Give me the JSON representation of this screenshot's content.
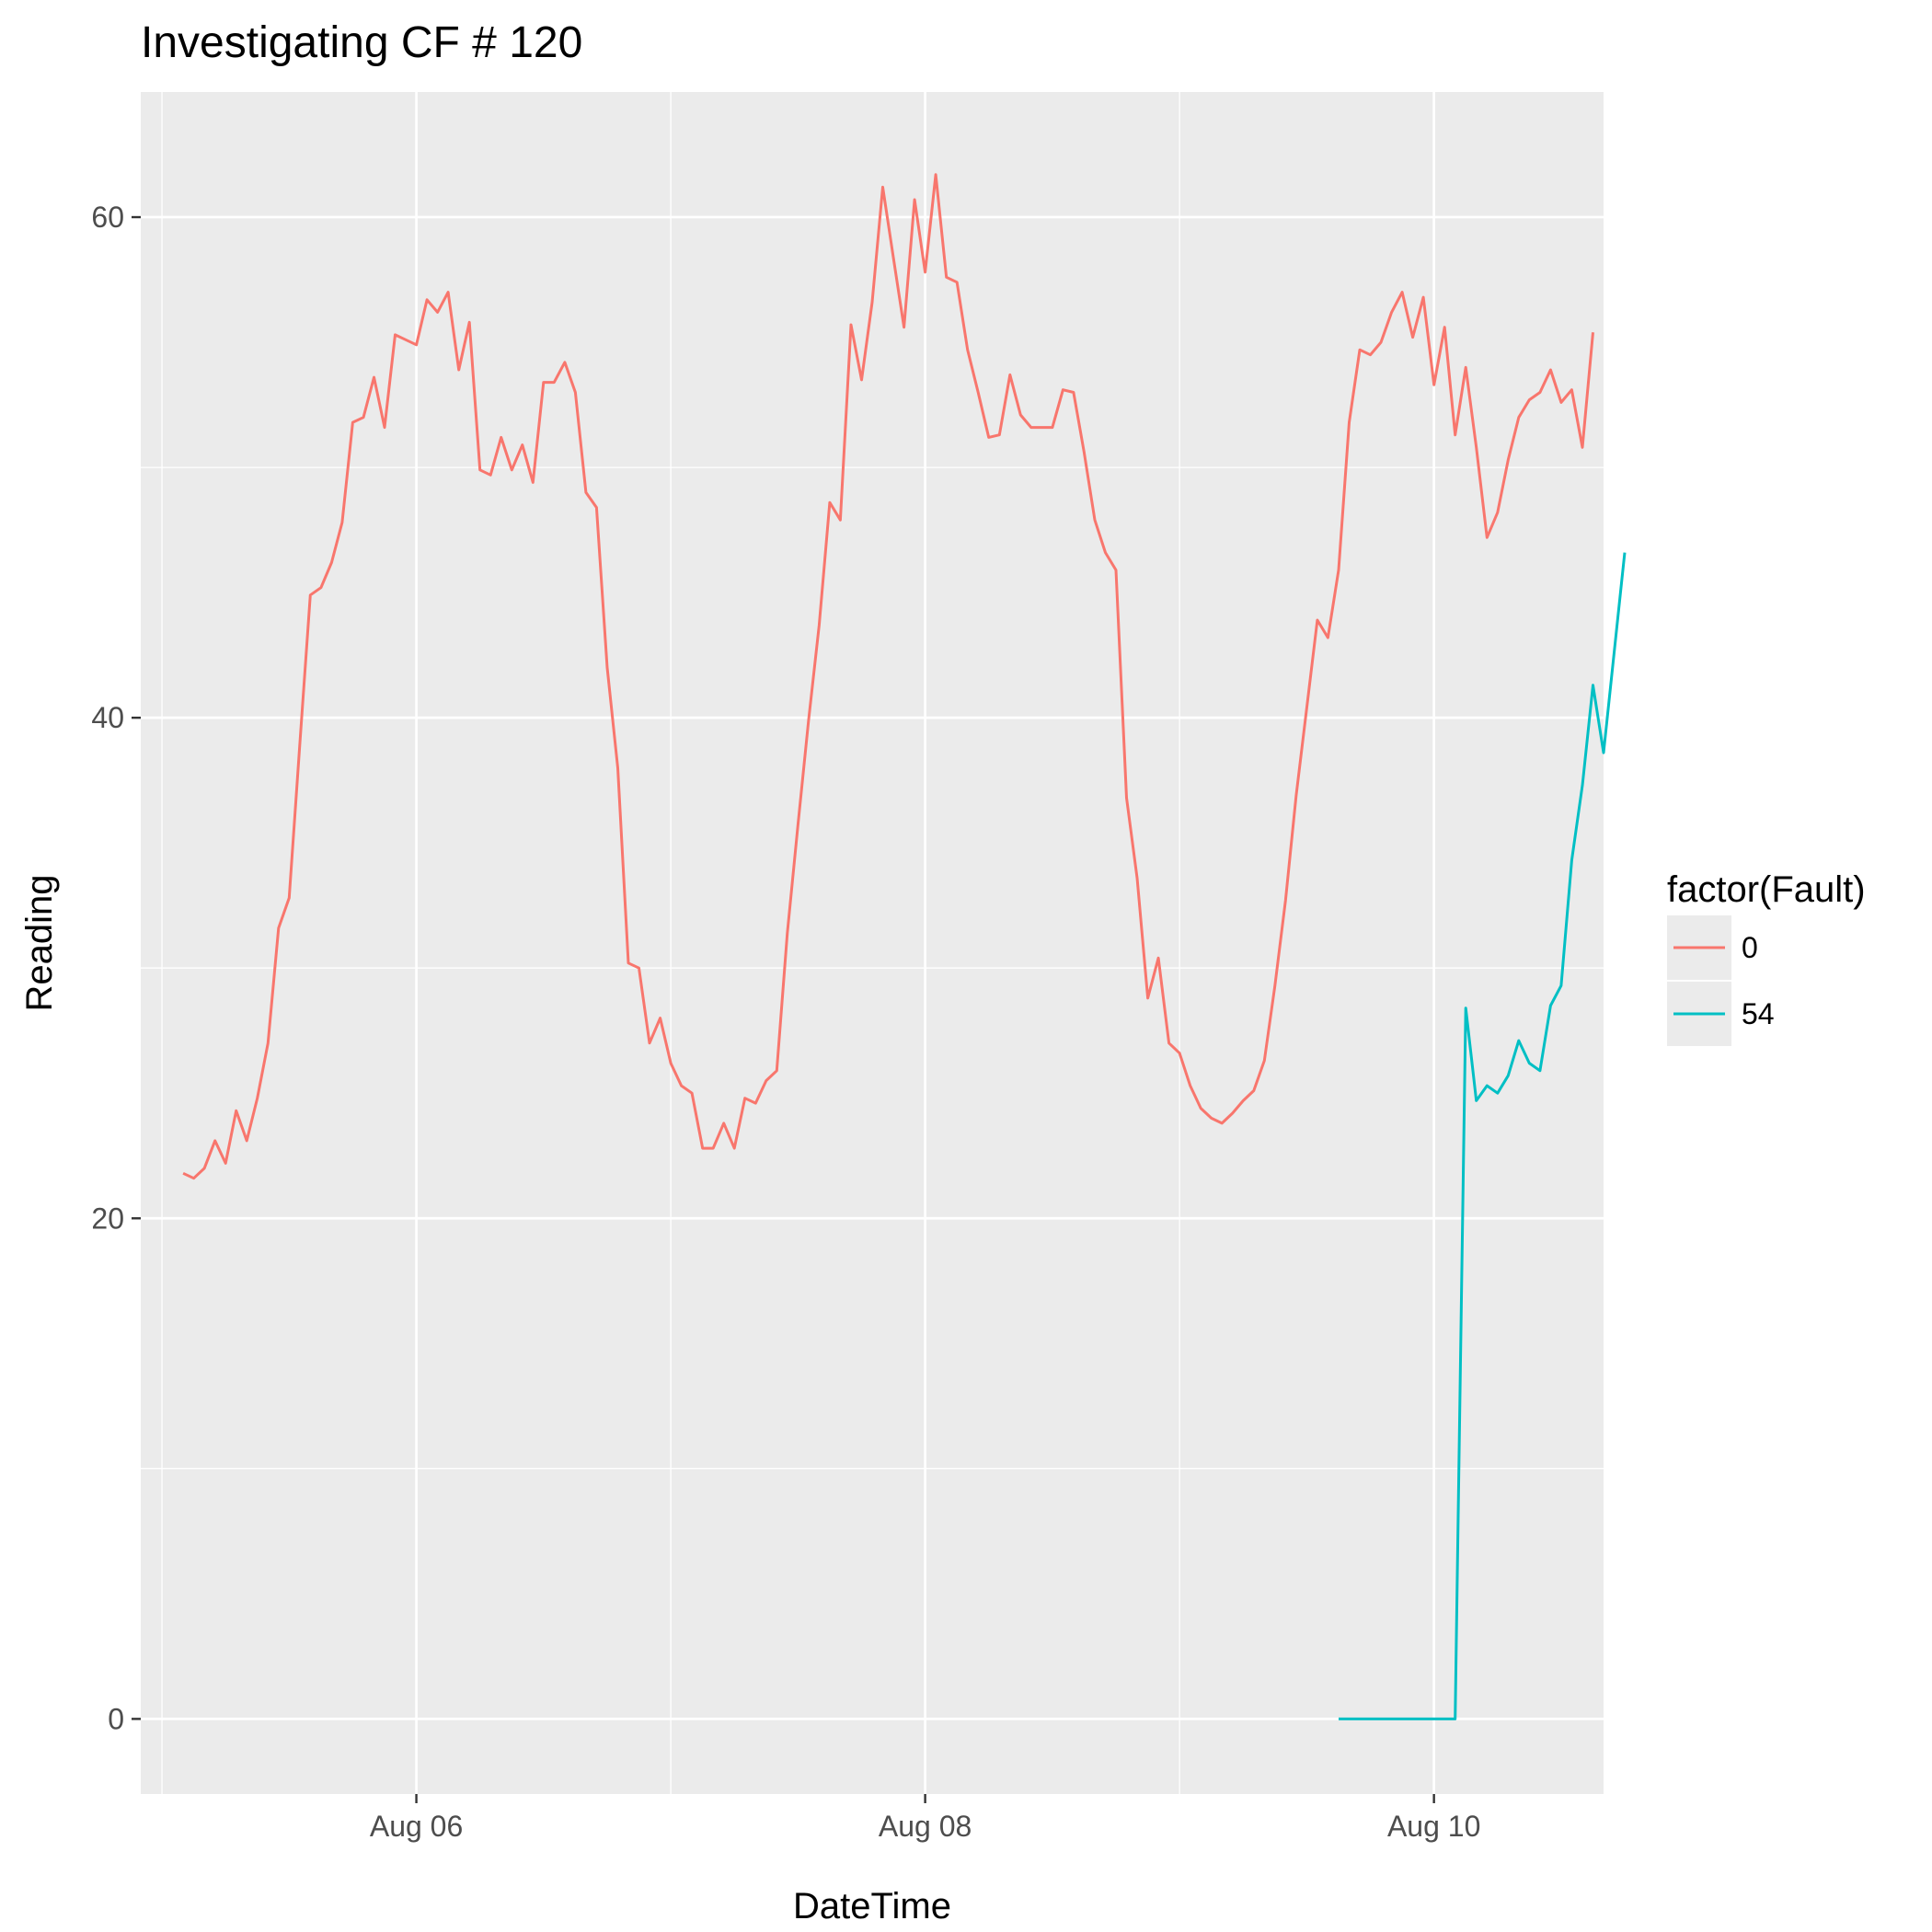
{
  "chart_data": {
    "type": "line",
    "title": "Investigating CF # 120",
    "xlabel": "DateTime",
    "ylabel": "Reading",
    "xlim": [
      "2023-08-04T22:00",
      "2023-08-10T16:00"
    ],
    "ylim": [
      -3,
      65
    ],
    "x_ticks": [
      {
        "label": "Aug 06",
        "value": "2023-08-06T00:00"
      },
      {
        "label": "Aug 08",
        "value": "2023-08-08T00:00"
      },
      {
        "label": "Aug 10",
        "value": "2023-08-10T00:00"
      }
    ],
    "y_ticks": [
      0,
      20,
      40,
      60
    ],
    "grid": true,
    "legend": {
      "title": "factor(Fault)",
      "position": "right"
    },
    "series": [
      {
        "name": "0",
        "color": "#F8766D",
        "points": [
          [
            "2023-08-05T02:00",
            21.8
          ],
          [
            "2023-08-05T03:00",
            21.6
          ],
          [
            "2023-08-05T04:00",
            22.0
          ],
          [
            "2023-08-05T05:00",
            23.1
          ],
          [
            "2023-08-05T06:00",
            22.2
          ],
          [
            "2023-08-05T07:00",
            24.3
          ],
          [
            "2023-08-05T08:00",
            23.1
          ],
          [
            "2023-08-05T09:00",
            24.8
          ],
          [
            "2023-08-05T10:00",
            27.0
          ],
          [
            "2023-08-05T11:00",
            31.6
          ],
          [
            "2023-08-05T12:00",
            32.8
          ],
          [
            "2023-08-05T13:00",
            38.9
          ],
          [
            "2023-08-05T14:00",
            44.9
          ],
          [
            "2023-08-05T15:00",
            45.2
          ],
          [
            "2023-08-05T16:00",
            46.2
          ],
          [
            "2023-08-05T17:00",
            47.8
          ],
          [
            "2023-08-05T18:00",
            51.8
          ],
          [
            "2023-08-05T19:00",
            52.0
          ],
          [
            "2023-08-05T20:00",
            53.6
          ],
          [
            "2023-08-05T21:00",
            51.6
          ],
          [
            "2023-08-05T22:00",
            55.3
          ],
          [
            "2023-08-05T23:00",
            55.1
          ],
          [
            "2023-08-06T00:00",
            54.9
          ],
          [
            "2023-08-06T01:00",
            56.7
          ],
          [
            "2023-08-06T02:00",
            56.2
          ],
          [
            "2023-08-06T03:00",
            57.0
          ],
          [
            "2023-08-06T04:00",
            53.9
          ],
          [
            "2023-08-06T05:00",
            55.8
          ],
          [
            "2023-08-06T06:00",
            49.9
          ],
          [
            "2023-08-06T07:00",
            49.7
          ],
          [
            "2023-08-06T08:00",
            51.2
          ],
          [
            "2023-08-06T09:00",
            49.9
          ],
          [
            "2023-08-06T10:00",
            50.9
          ],
          [
            "2023-08-06T11:00",
            49.4
          ],
          [
            "2023-08-06T12:00",
            53.4
          ],
          [
            "2023-08-06T13:00",
            53.4
          ],
          [
            "2023-08-06T14:00",
            54.2
          ],
          [
            "2023-08-06T15:00",
            53.0
          ],
          [
            "2023-08-06T16:00",
            49.0
          ],
          [
            "2023-08-06T17:00",
            48.4
          ],
          [
            "2023-08-06T18:00",
            42.0
          ],
          [
            "2023-08-06T19:00",
            38.0
          ],
          [
            "2023-08-06T20:00",
            30.2
          ],
          [
            "2023-08-06T21:00",
            30.0
          ],
          [
            "2023-08-06T22:00",
            27.0
          ],
          [
            "2023-08-06T23:00",
            28.0
          ],
          [
            "2023-08-07T00:00",
            26.2
          ],
          [
            "2023-08-07T01:00",
            25.3
          ],
          [
            "2023-08-07T02:00",
            25.0
          ],
          [
            "2023-08-07T03:00",
            22.8
          ],
          [
            "2023-08-07T04:00",
            22.8
          ],
          [
            "2023-08-07T05:00",
            23.8
          ],
          [
            "2023-08-07T06:00",
            22.8
          ],
          [
            "2023-08-07T07:00",
            24.8
          ],
          [
            "2023-08-07T08:00",
            24.6
          ],
          [
            "2023-08-07T09:00",
            25.5
          ],
          [
            "2023-08-07T10:00",
            25.9
          ],
          [
            "2023-08-07T11:00",
            31.4
          ],
          [
            "2023-08-07T12:00",
            35.7
          ],
          [
            "2023-08-07T13:00",
            39.9
          ],
          [
            "2023-08-07T14:00",
            43.7
          ],
          [
            "2023-08-07T15:00",
            48.6
          ],
          [
            "2023-08-07T16:00",
            47.9
          ],
          [
            "2023-08-07T17:00",
            55.7
          ],
          [
            "2023-08-07T18:00",
            53.5
          ],
          [
            "2023-08-07T19:00",
            56.6
          ],
          [
            "2023-08-07T20:00",
            61.2
          ],
          [
            "2023-08-07T21:00",
            58.4
          ],
          [
            "2023-08-07T22:00",
            55.6
          ],
          [
            "2023-08-07T23:00",
            60.7
          ],
          [
            "2023-08-08T00:00",
            57.8
          ],
          [
            "2023-08-08T01:00",
            61.7
          ],
          [
            "2023-08-08T02:00",
            57.6
          ],
          [
            "2023-08-08T03:00",
            57.4
          ],
          [
            "2023-08-08T04:00",
            54.7
          ],
          [
            "2023-08-08T05:00",
            53.0
          ],
          [
            "2023-08-08T06:00",
            51.2
          ],
          [
            "2023-08-08T07:00",
            51.3
          ],
          [
            "2023-08-08T08:00",
            53.7
          ],
          [
            "2023-08-08T09:00",
            52.1
          ],
          [
            "2023-08-08T10:00",
            51.6
          ],
          [
            "2023-08-08T11:00",
            51.6
          ],
          [
            "2023-08-08T12:00",
            51.6
          ],
          [
            "2023-08-08T13:00",
            53.1
          ],
          [
            "2023-08-08T14:00",
            53.0
          ],
          [
            "2023-08-08T15:00",
            50.6
          ],
          [
            "2023-08-08T16:00",
            47.9
          ],
          [
            "2023-08-08T17:00",
            46.6
          ],
          [
            "2023-08-08T18:00",
            45.9
          ],
          [
            "2023-08-08T19:00",
            36.8
          ],
          [
            "2023-08-08T20:00",
            33.6
          ],
          [
            "2023-08-08T21:00",
            28.8
          ],
          [
            "2023-08-08T22:00",
            30.4
          ],
          [
            "2023-08-08T23:00",
            27.0
          ],
          [
            "2023-08-09T00:00",
            26.6
          ],
          [
            "2023-08-09T01:00",
            25.3
          ],
          [
            "2023-08-09T02:00",
            24.4
          ],
          [
            "2023-08-09T03:00",
            24.0
          ],
          [
            "2023-08-09T04:00",
            23.8
          ],
          [
            "2023-08-09T05:00",
            24.2
          ],
          [
            "2023-08-09T06:00",
            24.7
          ],
          [
            "2023-08-09T07:00",
            25.1
          ],
          [
            "2023-08-09T08:00",
            26.3
          ],
          [
            "2023-08-09T09:00",
            29.3
          ],
          [
            "2023-08-09T10:00",
            32.7
          ],
          [
            "2023-08-09T11:00",
            36.9
          ],
          [
            "2023-08-09T12:00",
            40.4
          ],
          [
            "2023-08-09T13:00",
            43.9
          ],
          [
            "2023-08-09T14:00",
            43.2
          ],
          [
            "2023-08-09T15:00",
            45.9
          ],
          [
            "2023-08-09T16:00",
            51.8
          ],
          [
            "2023-08-09T17:00",
            54.7
          ],
          [
            "2023-08-09T18:00",
            54.5
          ],
          [
            "2023-08-09T19:00",
            55.0
          ],
          [
            "2023-08-09T20:00",
            56.2
          ],
          [
            "2023-08-09T21:00",
            57.0
          ],
          [
            "2023-08-09T22:00",
            55.2
          ],
          [
            "2023-08-09T23:00",
            56.8
          ],
          [
            "2023-08-10T00:00",
            53.3
          ],
          [
            "2023-08-10T01:00",
            55.6
          ],
          [
            "2023-08-10T02:00",
            51.3
          ],
          [
            "2023-08-10T03:00",
            54.0
          ],
          [
            "2023-08-10T04:00",
            50.8
          ],
          [
            "2023-08-10T05:00",
            47.2
          ],
          [
            "2023-08-10T06:00",
            48.2
          ],
          [
            "2023-08-10T07:00",
            50.3
          ],
          [
            "2023-08-10T08:00",
            52.0
          ],
          [
            "2023-08-10T09:00",
            52.7
          ],
          [
            "2023-08-10T10:00",
            53.0
          ],
          [
            "2023-08-10T11:00",
            53.9
          ],
          [
            "2023-08-10T12:00",
            52.6
          ],
          [
            "2023-08-10T13:00",
            53.1
          ],
          [
            "2023-08-10T14:00",
            50.8
          ],
          [
            "2023-08-10T15:00",
            55.4
          ]
        ]
      },
      {
        "name": "54",
        "color": "#00BFC4",
        "points": [
          [
            "2023-08-09T15:00",
            0.0
          ],
          [
            "2023-08-09T17:00",
            0.0
          ],
          [
            "2023-08-09T19:00",
            0.0
          ],
          [
            "2023-08-09T21:00",
            0.0
          ],
          [
            "2023-08-09T23:00",
            0.0
          ],
          [
            "2023-08-10T01:00",
            0.0
          ],
          [
            "2023-08-10T02:00",
            0.0
          ],
          [
            "2023-08-10T03:00",
            28.4
          ],
          [
            "2023-08-10T04:00",
            24.7
          ],
          [
            "2023-08-10T05:00",
            25.3
          ],
          [
            "2023-08-10T06:00",
            25.0
          ],
          [
            "2023-08-10T07:00",
            25.7
          ],
          [
            "2023-08-10T08:00",
            27.1
          ],
          [
            "2023-08-10T09:00",
            26.2
          ],
          [
            "2023-08-10T10:00",
            25.9
          ],
          [
            "2023-08-10T11:00",
            28.5
          ],
          [
            "2023-08-10T12:00",
            29.3
          ],
          [
            "2023-08-10T13:00",
            34.3
          ],
          [
            "2023-08-10T14:00",
            37.3
          ],
          [
            "2023-08-10T15:00",
            41.3
          ],
          [
            "2023-08-10T16:00",
            38.6
          ],
          [
            "2023-08-10T17:00",
            42.6
          ],
          [
            "2023-08-10T18:00",
            46.6
          ]
        ]
      }
    ]
  }
}
